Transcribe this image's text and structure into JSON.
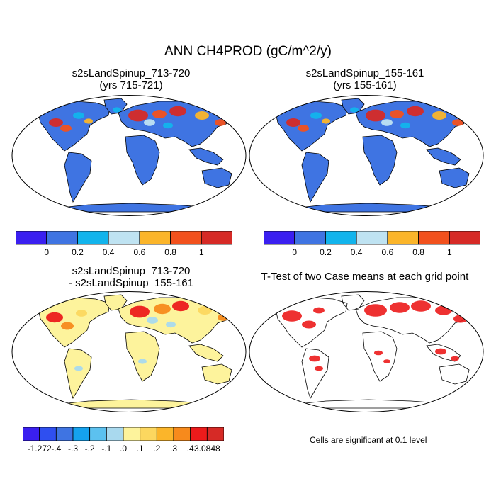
{
  "figure": {
    "title": "ANN CH4PROD (gC/m^2/y)"
  },
  "panels": [
    {
      "id": "case1",
      "title_line1": "s2sLandSpinup_713-720",
      "title_line2": "(yrs 715-721)",
      "fill": "value_map"
    },
    {
      "id": "case2",
      "title_line1": "s2sLandSpinup_155-161",
      "title_line2": "(yrs 155-161)",
      "fill": "value_map"
    },
    {
      "id": "difference",
      "title_line1": "s2sLandSpinup_713-720",
      "title_line2": "- s2sLandSpinup_155-161",
      "fill": "difference_map"
    },
    {
      "id": "ttest",
      "title_line1": "T-Test of two Case means at each grid point",
      "title_line2": "",
      "fill": "significance_map"
    }
  ],
  "colorbar_top": {
    "labels": [
      "0",
      "0.2",
      "0.4",
      "0.6",
      "0.8",
      "1"
    ],
    "colors": [
      "#3a1ff0",
      "#3f74e2",
      "#12b4ec",
      "#bfe3f2",
      "#fbb52a",
      "#f2511d",
      "#d62a26"
    ]
  },
  "colorbar_diff": {
    "labels": [
      "-1.272",
      "-.4",
      "-.3",
      "-.2",
      "-.1",
      ".0",
      ".1",
      ".2",
      ".3",
      ".4",
      "3.0848"
    ],
    "colors": [
      "#3a1ff0",
      "#2f4ff0",
      "#3f74e2",
      "#15a2ee",
      "#5cc1ef",
      "#a9d9ee",
      "#fdf39c",
      "#fcd75f",
      "#fbb52a",
      "#f78a1c",
      "#ec1b1b",
      "#d62a26"
    ]
  },
  "ttest_note": "Cells are significant at 0.1 level",
  "colors": {
    "ocean": "#ffffff",
    "land_value": "#3f74e2",
    "land_diff": "#fdf39c",
    "signif": "#ec1b1b",
    "outline": "#000000"
  }
}
